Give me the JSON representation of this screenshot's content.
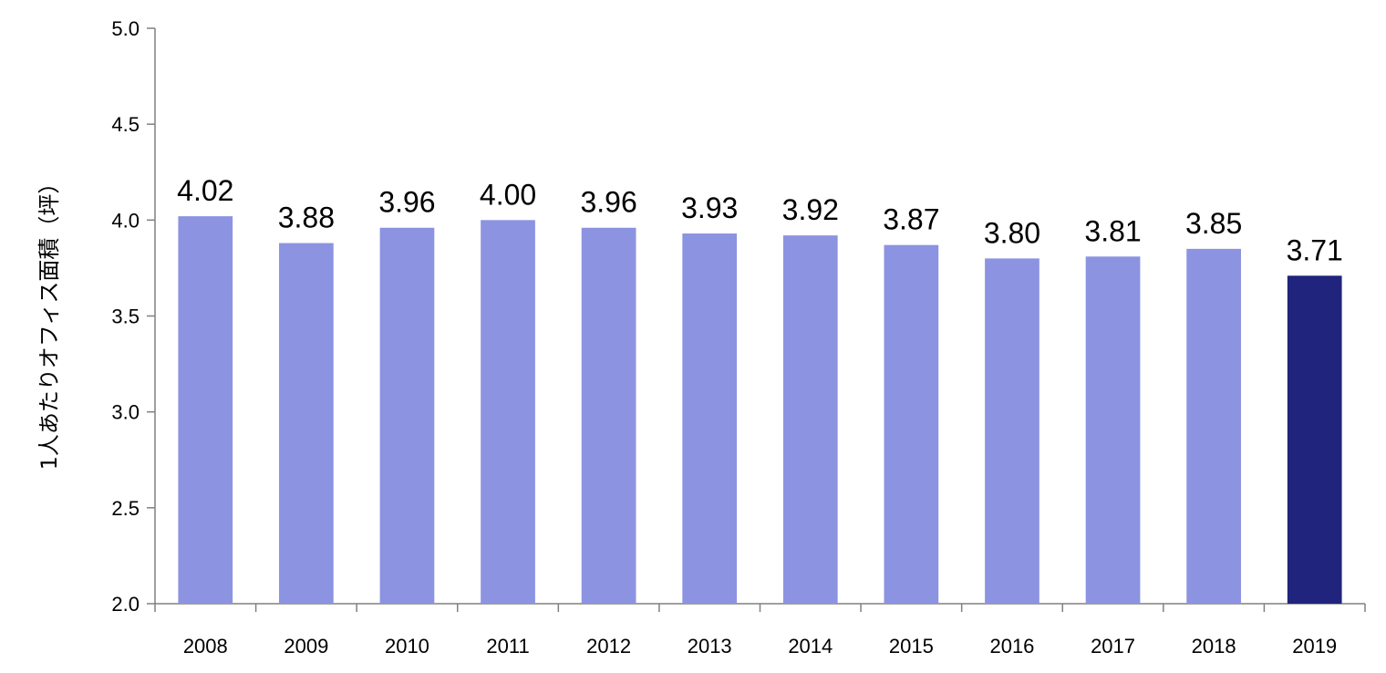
{
  "chart_data": {
    "type": "bar",
    "ylabel": "1人あたりオフィス面積（坪）",
    "categories": [
      "2008",
      "2009",
      "2010",
      "2011",
      "2012",
      "2013",
      "2014",
      "2015",
      "2016",
      "2017",
      "2018",
      "2019"
    ],
    "values": [
      4.02,
      3.88,
      3.96,
      4.0,
      3.96,
      3.93,
      3.92,
      3.87,
      3.8,
      3.81,
      3.85,
      3.71
    ],
    "data_labels": [
      "4.02",
      "3.88",
      "3.96",
      "4.00",
      "3.96",
      "3.93",
      "3.92",
      "3.87",
      "3.80",
      "3.81",
      "3.85",
      "3.71"
    ],
    "ylim": [
      2.0,
      5.0
    ],
    "yticks": [
      "2.0",
      "2.5",
      "3.0",
      "3.5",
      "4.0",
      "4.5",
      "5.0"
    ],
    "grid": false,
    "legend": "none",
    "colors": {
      "bar": "#8c93e1",
      "highlight": "#20247c",
      "axis": "#808080"
    },
    "highlight_category": "2019"
  }
}
